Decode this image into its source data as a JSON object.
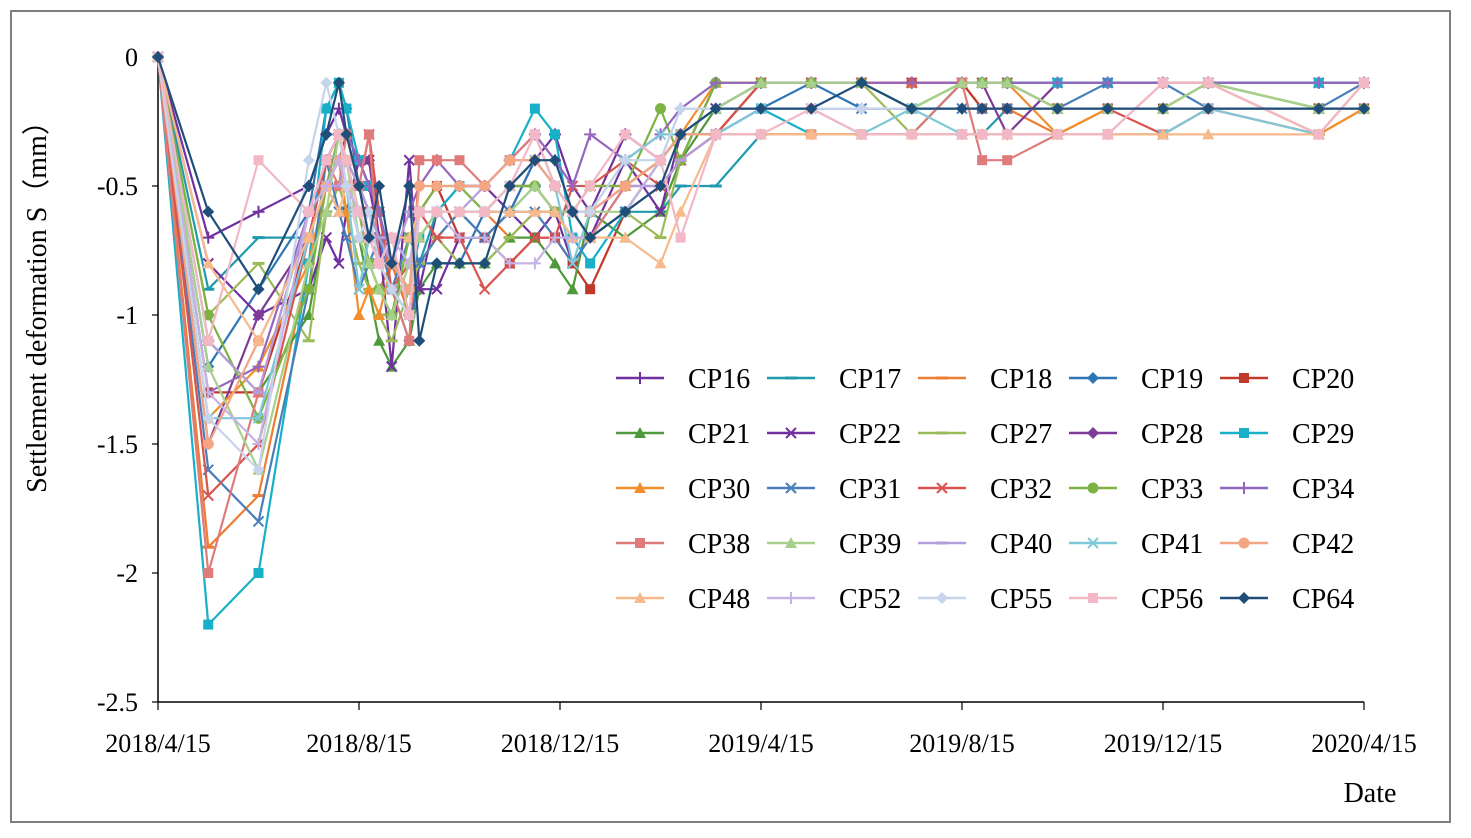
{
  "chart_data": {
    "type": "line",
    "title": "",
    "xlabel": "Date",
    "ylabel": "Settlement deformation S（mm）",
    "ylim": [
      -2.5,
      0
    ],
    "yticks": [
      "0",
      "-0.5",
      "-1",
      "-1.5",
      "-2",
      "-2.5"
    ],
    "ytick_values": [
      0,
      -0.5,
      -1,
      -1.5,
      -2,
      -2.5
    ],
    "xlim": [
      0,
      24
    ],
    "xtick_labels": [
      "2018/4/15",
      "2018/8/15",
      "2018/12/15",
      "2019/4/15",
      "2019/8/15",
      "2019/12/15",
      "2020/4/15"
    ],
    "xtick_values": [
      0,
      4,
      8,
      12,
      16,
      20,
      24
    ],
    "legend_position": "center-right",
    "x": [
      0,
      1,
      2,
      3,
      3.35,
      3.6,
      3.75,
      4,
      4.2,
      4.4,
      4.65,
      5,
      5.2,
      5.55,
      6,
      6.5,
      7,
      7.5,
      7.9,
      8.25,
      8.6,
      9.3,
      10,
      10.4,
      11.1,
      12,
      13,
      14,
      15,
      16,
      16.4,
      16.9,
      17.9,
      18.9,
      20,
      20.9,
      23.1,
      24
    ],
    "series": [
      {
        "name": "CP16",
        "color": "#7030a0",
        "marker": "plus",
        "values": [
          0,
          -0.7,
          -0.6,
          -0.5,
          -0.3,
          -0.2,
          -0.3,
          -0.4,
          -0.5,
          -0.7,
          -0.8,
          -1.0,
          -0.9,
          -0.6,
          -0.5,
          -0.5,
          -0.6,
          -0.4,
          -0.3,
          -0.5,
          -0.6,
          -0.3,
          -0.4,
          -0.3,
          -0.3,
          -0.1,
          -0.1,
          -0.1,
          -0.1,
          -0.1,
          -0.1,
          -0.1,
          -0.1,
          -0.1,
          -0.1,
          -0.1,
          -0.1,
          -0.1
        ]
      },
      {
        "name": "CP17",
        "color": "#1f9aae",
        "marker": "dash",
        "values": [
          0,
          -0.9,
          -0.7,
          -0.7,
          -0.4,
          -0.3,
          -0.4,
          -0.5,
          -0.6,
          -0.7,
          -0.9,
          -1.0,
          -0.8,
          -0.6,
          -0.6,
          -0.7,
          -0.6,
          -0.5,
          -0.6,
          -0.6,
          -0.7,
          -0.6,
          -0.6,
          -0.5,
          -0.5,
          -0.3,
          -0.3,
          -0.3,
          -0.3,
          -0.3,
          -0.3,
          -0.2,
          -0.2,
          -0.2,
          -0.2,
          -0.2,
          -0.2,
          -0.2
        ]
      },
      {
        "name": "CP18",
        "color": "#ed7d31",
        "marker": "dash",
        "values": [
          0,
          -1.9,
          -1.7,
          -0.8,
          -0.5,
          -0.4,
          -0.5,
          -0.7,
          -0.8,
          -0.9,
          -0.8,
          -1.0,
          -0.8,
          -0.7,
          -0.6,
          -0.6,
          -0.7,
          -0.6,
          -0.6,
          -0.7,
          -0.7,
          -0.6,
          -0.5,
          -0.4,
          -0.3,
          -0.1,
          -0.1,
          -0.1,
          -0.1,
          -0.1,
          -0.2,
          -0.2,
          -0.3,
          -0.2,
          -0.2,
          -0.2,
          -0.3,
          -0.2
        ]
      },
      {
        "name": "CP19",
        "color": "#2e75b6",
        "marker": "diamond",
        "values": [
          0,
          -1.2,
          -0.9,
          -0.6,
          -0.2,
          -0.1,
          -0.2,
          -0.5,
          -0.7,
          -0.8,
          -0.9,
          -1.1,
          -0.8,
          -0.8,
          -0.8,
          -0.6,
          -0.6,
          -0.4,
          -0.5,
          -0.6,
          -0.7,
          -0.5,
          -0.4,
          -0.3,
          -0.2,
          -0.2,
          -0.1,
          -0.2,
          -0.2,
          -0.2,
          -0.2,
          -0.2,
          -0.2,
          -0.2,
          -0.2,
          -0.2,
          -0.2,
          -0.2
        ]
      },
      {
        "name": "CP20",
        "color": "#c0392b",
        "marker": "square",
        "values": [
          0,
          -1.3,
          -1.3,
          -0.7,
          -0.5,
          -0.4,
          -0.3,
          -0.5,
          -0.6,
          -0.8,
          -0.9,
          -1.0,
          -0.6,
          -0.5,
          -0.7,
          -0.7,
          -0.8,
          -0.7,
          -0.7,
          -0.8,
          -0.9,
          -0.6,
          -0.4,
          -0.3,
          -0.3,
          -0.1,
          -0.1,
          -0.1,
          -0.1,
          -0.1,
          -0.2,
          -0.2,
          -0.2,
          -0.2,
          -0.2,
          -0.2,
          -0.2,
          -0.2
        ]
      },
      {
        "name": "CP21",
        "color": "#4e9a3a",
        "marker": "triangle",
        "values": [
          0,
          -1.1,
          -1.3,
          -1.0,
          -0.6,
          -0.5,
          -0.5,
          -0.7,
          -0.9,
          -1.1,
          -1.2,
          -1.1,
          -0.9,
          -0.8,
          -0.8,
          -0.8,
          -0.7,
          -0.7,
          -0.8,
          -0.9,
          -0.6,
          -0.7,
          -0.6,
          -0.4,
          -0.2,
          -0.1,
          -0.1,
          -0.1,
          -0.2,
          -0.1,
          -0.1,
          -0.1,
          -0.2,
          -0.2,
          -0.2,
          -0.1,
          -0.2,
          -0.2
        ]
      },
      {
        "name": "CP22",
        "color": "#7030a0",
        "marker": "x",
        "values": [
          0,
          -0.8,
          -1.0,
          -0.9,
          -0.7,
          -0.8,
          -0.6,
          -0.4,
          -0.4,
          -0.7,
          -1.2,
          -0.4,
          -0.9,
          -0.9,
          -0.7,
          -0.7,
          -0.6,
          -0.7,
          -0.6,
          -0.8,
          -0.7,
          -0.4,
          -0.6,
          -0.3,
          -0.2,
          -0.1,
          -0.1,
          -0.1,
          -0.1,
          -0.1,
          -0.1,
          -0.1,
          -0.1,
          -0.1,
          -0.1,
          -0.1,
          -0.1,
          -0.1
        ]
      },
      {
        "name": "CP27",
        "color": "#9bbb59",
        "marker": "dash",
        "values": [
          0,
          -1.0,
          -0.8,
          -1.1,
          -0.6,
          -0.5,
          -0.6,
          -0.8,
          -0.9,
          -1.0,
          -1.1,
          -0.9,
          -0.8,
          -0.7,
          -0.8,
          -0.8,
          -0.7,
          -0.6,
          -0.6,
          -0.7,
          -0.7,
          -0.6,
          -0.7,
          -0.4,
          -0.1,
          -0.1,
          -0.1,
          -0.1,
          -0.3,
          -0.1,
          -0.1,
          -0.1,
          -0.2,
          -0.2,
          -0.2,
          -0.1,
          -0.2,
          -0.2
        ]
      },
      {
        "name": "CP28",
        "color": "#7d3c98",
        "marker": "diamond",
        "values": [
          0,
          -1.5,
          -1.0,
          -0.7,
          -0.4,
          -0.3,
          -0.3,
          -0.4,
          -0.4,
          -0.6,
          -0.8,
          -0.9,
          -0.6,
          -0.6,
          -0.6,
          -0.6,
          -0.5,
          -0.5,
          -0.6,
          -0.6,
          -0.6,
          -0.5,
          -0.5,
          -0.4,
          -0.1,
          -0.1,
          -0.1,
          -0.1,
          -0.1,
          -0.1,
          -0.1,
          -0.3,
          -0.1,
          -0.1,
          -0.1,
          -0.1,
          -0.1,
          -0.1
        ]
      },
      {
        "name": "CP29",
        "color": "#17b0c8",
        "marker": "square",
        "values": [
          0,
          -2.2,
          -2.0,
          -0.8,
          -0.2,
          -0.1,
          -0.2,
          -0.4,
          -0.5,
          -0.6,
          -0.8,
          -0.9,
          -0.7,
          -0.6,
          -0.5,
          -0.5,
          -0.4,
          -0.2,
          -0.3,
          -0.7,
          -0.8,
          -0.6,
          -0.4,
          -0.3,
          -0.3,
          -0.2,
          -0.3,
          -0.3,
          -0.3,
          -0.1,
          -0.1,
          -0.1,
          -0.1,
          -0.1,
          -0.1,
          -0.1,
          -0.1,
          -0.1
        ]
      },
      {
        "name": "CP30",
        "color": "#f28e2b",
        "marker": "triangle",
        "values": [
          0,
          -1.4,
          -1.2,
          -0.8,
          -0.5,
          -0.4,
          -0.6,
          -1.0,
          -0.9,
          -1.0,
          -0.8,
          -0.8,
          -0.7,
          -0.6,
          -0.6,
          -0.6,
          -0.5,
          -0.5,
          -0.6,
          -0.6,
          -0.5,
          -0.5,
          -0.4,
          -0.3,
          -0.1,
          -0.1,
          -0.1,
          -0.1,
          -0.1,
          -0.1,
          -0.1,
          -0.1,
          -0.3,
          -0.2,
          -0.2,
          -0.1,
          -0.3,
          -0.2
        ]
      },
      {
        "name": "CP31",
        "color": "#4a7ebb",
        "marker": "x",
        "values": [
          0,
          -1.6,
          -1.8,
          -0.9,
          -0.4,
          -0.6,
          -0.7,
          -0.9,
          -0.8,
          -0.7,
          -0.9,
          -0.7,
          -0.8,
          -0.7,
          -0.6,
          -0.7,
          -0.6,
          -0.6,
          -0.7,
          -0.8,
          -0.7,
          -0.6,
          -0.5,
          -0.4,
          -0.3,
          -0.2,
          -0.2,
          -0.2,
          -0.2,
          -0.2,
          -0.2,
          -0.2,
          -0.2,
          -0.1,
          -0.1,
          -0.2,
          -0.2,
          -0.1
        ]
      },
      {
        "name": "CP32",
        "color": "#d9534f",
        "marker": "x",
        "values": [
          0,
          -1.7,
          -1.5,
          -0.7,
          -0.4,
          -0.3,
          -0.4,
          -0.5,
          -0.3,
          -0.6,
          -0.9,
          -0.8,
          -0.6,
          -0.7,
          -0.7,
          -0.9,
          -0.8,
          -0.7,
          -0.7,
          -0.5,
          -0.5,
          -0.4,
          -0.5,
          -0.4,
          -0.3,
          -0.1,
          -0.1,
          -0.1,
          -0.1,
          -0.1,
          -0.1,
          -0.1,
          -0.2,
          -0.2,
          -0.3,
          -0.2,
          -0.2,
          -0.2
        ]
      },
      {
        "name": "CP33",
        "color": "#7cb342",
        "marker": "circle",
        "values": [
          0,
          -1.0,
          -1.4,
          -0.9,
          -0.5,
          -0.3,
          -0.4,
          -0.6,
          -0.8,
          -0.9,
          -1.0,
          -0.7,
          -0.6,
          -0.5,
          -0.5,
          -0.6,
          -0.5,
          -0.5,
          -0.6,
          -0.6,
          -0.5,
          -0.5,
          -0.2,
          -0.4,
          -0.1,
          -0.1,
          -0.1,
          -0.1,
          -0.2,
          -0.1,
          -0.1,
          -0.1,
          -0.2,
          -0.2,
          -0.2,
          -0.1,
          -0.2,
          -0.2
        ]
      },
      {
        "name": "CP34",
        "color": "#9467bd",
        "marker": "plus",
        "values": [
          0,
          -1.3,
          -1.2,
          -0.6,
          -0.4,
          -0.3,
          -0.3,
          -0.4,
          -0.5,
          -0.6,
          -0.8,
          -0.6,
          -0.5,
          -0.4,
          -0.5,
          -0.5,
          -0.4,
          -0.3,
          -0.4,
          -0.5,
          -0.3,
          -0.4,
          -0.3,
          -0.2,
          -0.1,
          -0.1,
          -0.1,
          -0.1,
          -0.1,
          -0.1,
          -0.1,
          -0.1,
          -0.1,
          -0.1,
          -0.1,
          -0.1,
          -0.1,
          -0.1
        ]
      },
      {
        "name": "CP38",
        "color": "#e07b7b",
        "marker": "square",
        "values": [
          0,
          -2.0,
          -1.3,
          -0.6,
          -0.4,
          -0.5,
          -0.3,
          -0.5,
          -0.3,
          -0.8,
          -0.9,
          -1.1,
          -0.4,
          -0.4,
          -0.4,
          -0.5,
          -0.4,
          -0.3,
          -0.5,
          -0.6,
          -0.7,
          -0.5,
          -0.4,
          -0.3,
          -0.3,
          -0.3,
          -0.3,
          -0.3,
          -0.3,
          -0.1,
          -0.4,
          -0.4,
          -0.3,
          -0.3,
          -0.3,
          -0.2,
          -0.3,
          -0.1
        ]
      },
      {
        "name": "CP39",
        "color": "#a8d08d",
        "marker": "triangle",
        "values": [
          0,
          -1.2,
          -1.6,
          -0.8,
          -0.6,
          -0.3,
          -0.4,
          -0.7,
          -0.8,
          -0.9,
          -1.0,
          -0.8,
          -0.7,
          -0.6,
          -0.6,
          -0.6,
          -0.6,
          -0.5,
          -0.6,
          -0.6,
          -0.6,
          -0.6,
          -0.4,
          -0.3,
          -0.2,
          -0.1,
          -0.1,
          -0.1,
          -0.2,
          -0.1,
          -0.1,
          -0.1,
          -0.2,
          -0.2,
          -0.2,
          -0.1,
          -0.2,
          -0.2
        ]
      },
      {
        "name": "CP40",
        "color": "#b39ddb",
        "marker": "dash",
        "values": [
          0,
          -1.1,
          -1.3,
          -0.6,
          -0.5,
          -0.5,
          -0.4,
          -0.5,
          -0.6,
          -0.7,
          -0.8,
          -0.6,
          -0.6,
          -0.6,
          -0.6,
          -0.5,
          -0.4,
          -0.4,
          -0.5,
          -0.6,
          -0.6,
          -0.5,
          -0.5,
          -0.4,
          -0.3,
          -0.2,
          -0.2,
          -0.2,
          -0.2,
          -0.2,
          -0.2,
          -0.2,
          -0.2,
          -0.2,
          -0.2,
          -0.2,
          -0.2,
          -0.2
        ]
      },
      {
        "name": "CP41",
        "color": "#7fc8d9",
        "marker": "x",
        "values": [
          0,
          -1.4,
          -1.4,
          -0.7,
          -0.5,
          -0.4,
          -0.5,
          -0.9,
          -0.7,
          -0.8,
          -0.9,
          -1.0,
          -0.6,
          -0.6,
          -0.6,
          -0.6,
          -0.5,
          -0.4,
          -0.5,
          -0.8,
          -0.6,
          -0.4,
          -0.3,
          -0.3,
          -0.3,
          -0.2,
          -0.2,
          -0.3,
          -0.2,
          -0.3,
          -0.3,
          -0.3,
          -0.3,
          -0.3,
          -0.3,
          -0.2,
          -0.3,
          -0.1
        ]
      },
      {
        "name": "CP42",
        "color": "#f4a582",
        "marker": "circle",
        "values": [
          0,
          -1.5,
          -1.1,
          -0.7,
          -0.5,
          -0.4,
          -0.5,
          -0.6,
          -0.7,
          -0.8,
          -0.8,
          -0.9,
          -0.5,
          -0.5,
          -0.5,
          -0.5,
          -0.4,
          -0.4,
          -0.5,
          -0.6,
          -0.6,
          -0.5,
          -0.4,
          -0.3,
          -0.3,
          -0.3,
          -0.3,
          -0.3,
          -0.3,
          -0.3,
          -0.3,
          -0.3,
          -0.3,
          -0.3,
          -0.1,
          -0.1,
          -0.3,
          -0.1
        ]
      },
      {
        "name": "CP48",
        "color": "#f8b98c",
        "marker": "triangle",
        "values": [
          0,
          -0.8,
          -1.1,
          -0.7,
          -0.5,
          -0.6,
          -0.5,
          -0.6,
          -0.7,
          -0.8,
          -0.7,
          -0.7,
          -0.6,
          -0.6,
          -0.6,
          -0.6,
          -0.6,
          -0.6,
          -0.6,
          -0.7,
          -0.7,
          -0.7,
          -0.8,
          -0.6,
          -0.3,
          -0.3,
          -0.3,
          -0.3,
          -0.3,
          -0.3,
          -0.3,
          -0.3,
          -0.3,
          -0.3,
          -0.3,
          -0.3,
          -0.3,
          -0.1
        ]
      },
      {
        "name": "CP52",
        "color": "#c5b3e6",
        "marker": "plus",
        "values": [
          0,
          -1.3,
          -1.5,
          -0.6,
          -0.5,
          -0.4,
          -0.5,
          -0.6,
          -0.7,
          -0.8,
          -0.7,
          -0.8,
          -0.6,
          -0.6,
          -0.7,
          -0.7,
          -0.8,
          -0.8,
          -0.7,
          -0.7,
          -0.7,
          -0.6,
          -0.4,
          -0.2,
          -0.2,
          -0.2,
          -0.2,
          -0.2,
          -0.2,
          -0.2,
          -0.2,
          -0.2,
          -0.2,
          -0.2,
          -0.2,
          -0.2,
          -0.2,
          -0.2
        ]
      },
      {
        "name": "CP55",
        "color": "#c6d4ec",
        "marker": "diamond",
        "values": [
          0,
          -1.4,
          -1.6,
          -0.4,
          -0.1,
          -0.3,
          -0.5,
          -0.7,
          -0.6,
          -0.8,
          -0.9,
          -1.0,
          -0.6,
          -0.6,
          -0.6,
          -0.6,
          -0.5,
          -0.4,
          -0.4,
          -0.6,
          -0.6,
          -0.4,
          -0.4,
          -0.2,
          -0.2,
          -0.2,
          -0.2,
          -0.2,
          -0.2,
          -0.2,
          -0.2,
          -0.2,
          -0.2,
          -0.2,
          -0.2,
          -0.2,
          -0.2,
          -0.2
        ]
      },
      {
        "name": "CP56",
        "color": "#f2b8c6",
        "marker": "square",
        "values": [
          0,
          -1.1,
          -0.4,
          -0.6,
          -0.4,
          -0.3,
          -0.4,
          -0.6,
          -0.7,
          -0.8,
          -0.7,
          -1.0,
          -0.6,
          -0.6,
          -0.6,
          -0.6,
          -0.5,
          -0.3,
          -0.5,
          -0.6,
          -0.5,
          -0.3,
          -0.4,
          -0.7,
          -0.3,
          -0.3,
          -0.2,
          -0.3,
          -0.3,
          -0.3,
          -0.3,
          -0.3,
          -0.3,
          -0.3,
          -0.1,
          -0.1,
          -0.3,
          -0.1
        ]
      },
      {
        "name": "CP64",
        "color": "#1f4e79",
        "marker": "diamond",
        "values": [
          0,
          -0.6,
          -0.9,
          -0.5,
          -0.3,
          -0.1,
          -0.3,
          -0.5,
          -0.7,
          -0.5,
          -0.8,
          -0.5,
          -1.1,
          -0.8,
          -0.8,
          -0.8,
          -0.5,
          -0.4,
          -0.4,
          -0.6,
          -0.7,
          -0.6,
          -0.5,
          -0.3,
          -0.2,
          -0.2,
          -0.2,
          -0.1,
          -0.2,
          -0.2,
          -0.2,
          -0.2,
          -0.2,
          -0.2,
          -0.2,
          -0.2,
          -0.2,
          -0.2
        ]
      }
    ]
  }
}
